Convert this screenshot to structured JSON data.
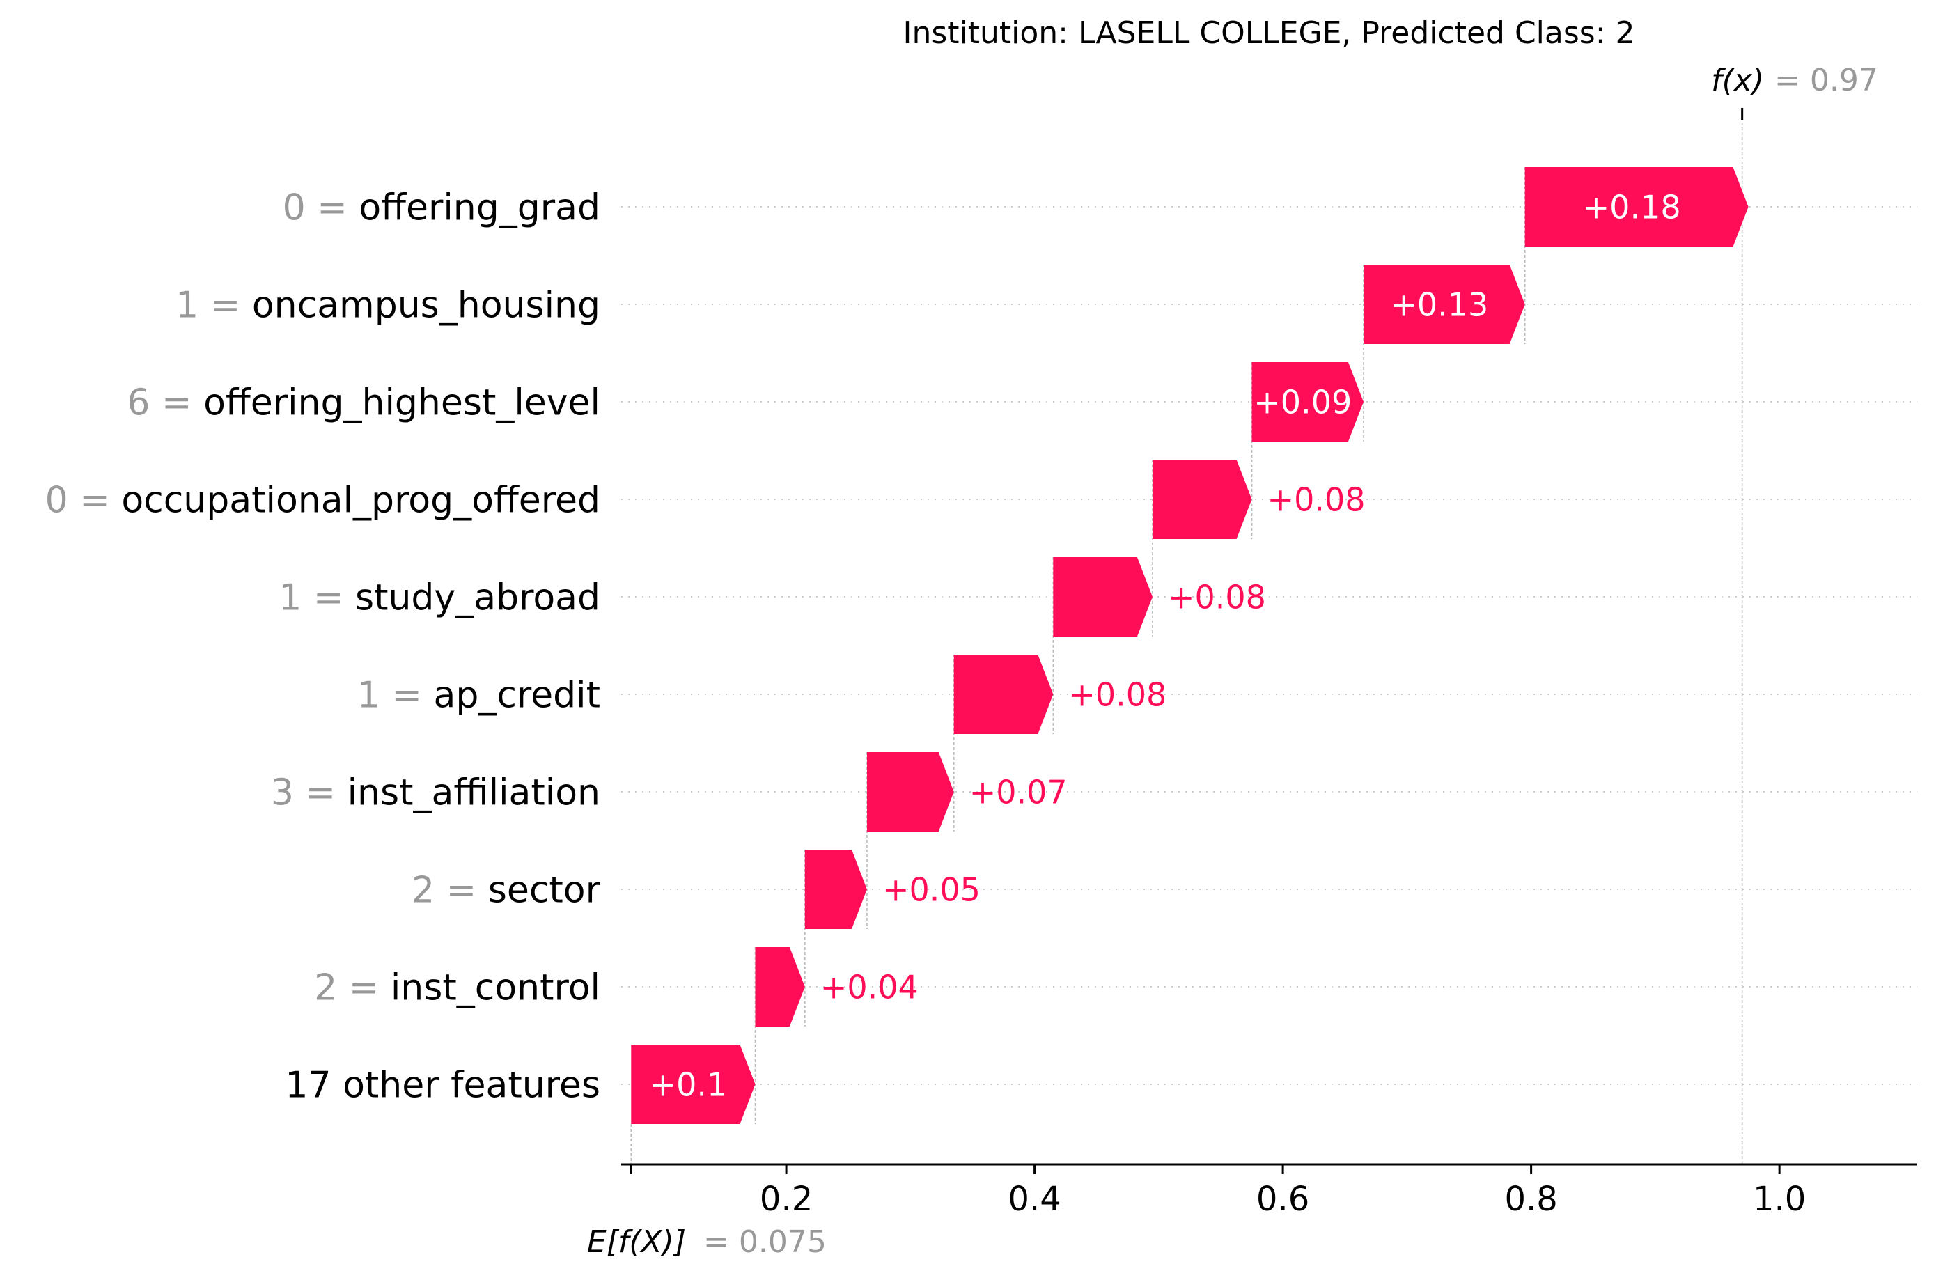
{
  "chart_data": {
    "type": "waterfall",
    "title": "Institution: LASELL COLLEGE, Predicted Class: 2",
    "base_value": 0.075,
    "base_label": {
      "main": "E[f(X)]",
      "value": "= 0.075"
    },
    "output_value": 0.97,
    "output_label": {
      "main": "f(x)",
      "value": "= 0.97"
    },
    "features": [
      {
        "value_text": "0 =",
        "name": "offering_grad",
        "contribution": 0.18,
        "label": "+0.18",
        "label_inside": true
      },
      {
        "value_text": "1 =",
        "name": "oncampus_housing",
        "contribution": 0.13,
        "label": "+0.13",
        "label_inside": true
      },
      {
        "value_text": "6 =",
        "name": "offering_highest_level",
        "contribution": 0.09,
        "label": "+0.09",
        "label_inside": true
      },
      {
        "value_text": "0 =",
        "name": "occupational_prog_offered",
        "contribution": 0.08,
        "label": "+0.08",
        "label_inside": false
      },
      {
        "value_text": "1 =",
        "name": "study_abroad",
        "contribution": 0.08,
        "label": "+0.08",
        "label_inside": false
      },
      {
        "value_text": "1 =",
        "name": "ap_credit",
        "contribution": 0.08,
        "label": "+0.08",
        "label_inside": false
      },
      {
        "value_text": "3 =",
        "name": "inst_affiliation",
        "contribution": 0.07,
        "label": "+0.07",
        "label_inside": false
      },
      {
        "value_text": "2 =",
        "name": "sector",
        "contribution": 0.05,
        "label": "+0.05",
        "label_inside": false
      },
      {
        "value_text": "2 =",
        "name": "inst_control",
        "contribution": 0.04,
        "label": "+0.04",
        "label_inside": false
      },
      {
        "value_text": "",
        "name": "17 other features",
        "contribution": 0.1,
        "label": "+0.1",
        "label_inside": true
      }
    ],
    "x_ticks": [
      "0.2",
      "0.4",
      "0.6",
      "0.8",
      "1.0"
    ],
    "xlim": [
      0.067,
      1.111
    ],
    "xlabel": "",
    "ylabel": "",
    "grid": "horizontal dotted",
    "legend": "none",
    "colors": {
      "positive": "#ff0d57",
      "axis": "#000000",
      "muted_text": "#999999",
      "gridline": "#cccccc",
      "guide": "#bbbbbb"
    }
  }
}
